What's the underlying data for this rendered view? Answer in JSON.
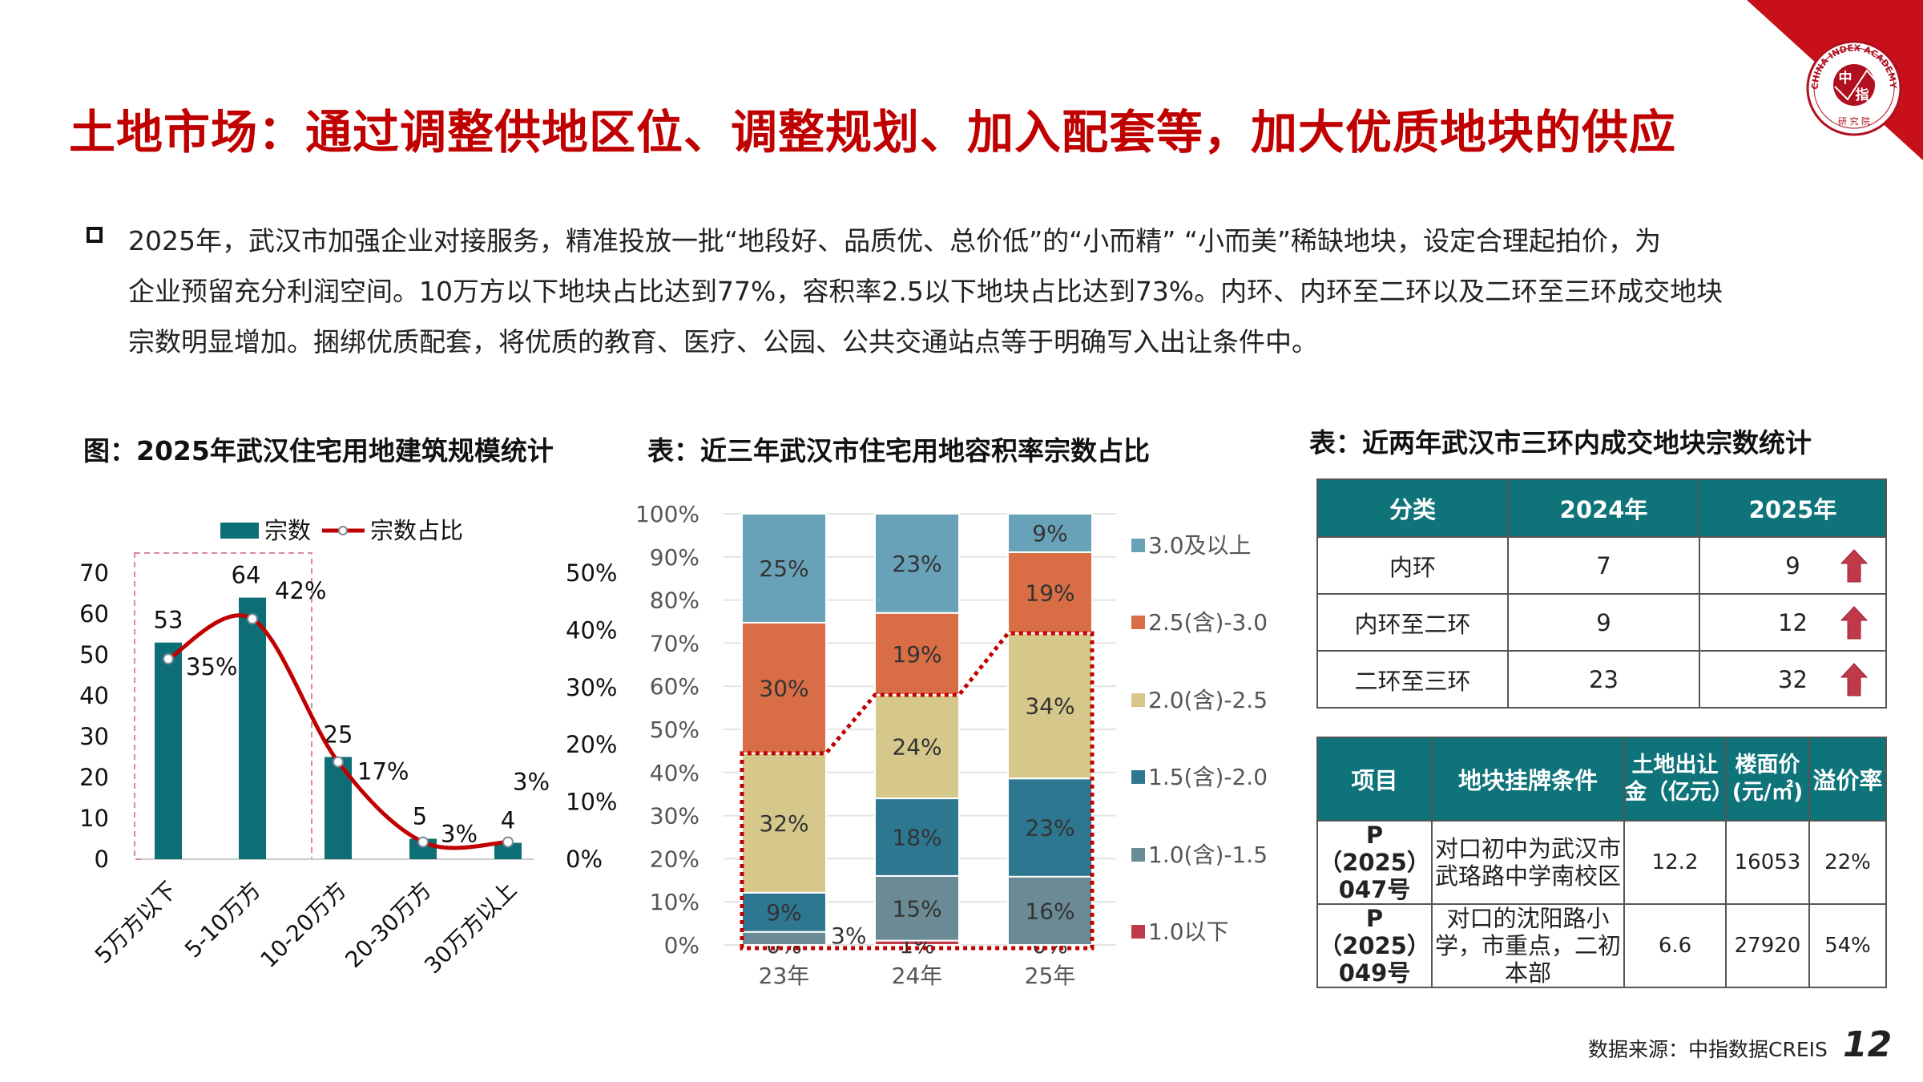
{
  "title": "土地市场：通过调整供地区位、调整规划、加入配套等，加大优质地块的供应",
  "logo": {
    "text_en": "CHINA INDEX ACADEMY",
    "text_cn_top": "中",
    "text_cn_bottom": "指",
    "text_cn_sub": "研究院",
    "color": "#c00000"
  },
  "bullet_lines": [
    "2025年，武汉市加强企业对接服务，精准投放一批“地段好、品质优、总价低”的“小而精” “小而美”稀缺地块，设定合理起拍价，为",
    "企业预留充分利润空间。10万方以下地块占比达到77%，容积率2.5以下地块占比达到73%。内环、内环至二环以及二环至三环成交地块",
    "宗数明显增加。捆绑优质配套，将优质的教育、医疗、公园、公共交通站点等于明确写入出让条件中。"
  ],
  "chart_data": [
    {
      "type": "bar",
      "title": "图：2025年武汉住宅用地建筑规模统计",
      "categories": [
        "5万方以下",
        "5-10万方",
        "10-20万方",
        "20-30万方",
        "30万方以上"
      ],
      "series": [
        {
          "name": "宗数",
          "type": "bar",
          "values": [
            53,
            64,
            25,
            5,
            4
          ],
          "color": "#0e6e76",
          "labels": [
            "53",
            "64",
            "25",
            "5",
            "4"
          ]
        },
        {
          "name": "宗数占比",
          "type": "line",
          "axis": "right",
          "values": [
            35,
            42,
            17,
            3,
            3
          ],
          "color": "#c00000",
          "labels": [
            "35%",
            "42%",
            "17%",
            "3%",
            "3%"
          ]
        }
      ],
      "ylim": [
        0,
        70
      ],
      "yticks": [
        "0",
        "10",
        "20",
        "30",
        "40",
        "50",
        "60",
        "70"
      ],
      "y2lim": [
        0,
        50
      ],
      "y2ticks": [
        "0%",
        "10%",
        "20%",
        "30%",
        "40%",
        "50%"
      ],
      "legend": "top",
      "highlight": "5万方以下 至 5-10万方"
    },
    {
      "type": "bar",
      "stacked": true,
      "title": "表：近三年武汉市住宅用地容积率宗数占比",
      "categories": [
        "23年",
        "24年",
        "25年"
      ],
      "series": [
        {
          "name": "1.0以下",
          "values": [
            0,
            1,
            0
          ],
          "color": "#c0394b"
        },
        {
          "name": "1.0(含)-1.5",
          "values": [
            3,
            15,
            16
          ],
          "color": "#6a8b95"
        },
        {
          "name": "1.5(含)-2.0",
          "values": [
            9,
            18,
            23
          ],
          "color": "#2e7790"
        },
        {
          "name": "2.0(含)-2.5",
          "values": [
            32,
            24,
            34
          ],
          "color": "#d6c88a"
        },
        {
          "name": "2.5(含)-3.0",
          "values": [
            30,
            19,
            19
          ],
          "color": "#d86d46"
        },
        {
          "name": "3.0及以上",
          "values": [
            25,
            23,
            9
          ],
          "color": "#68a2b8"
        }
      ],
      "ylim": [
        0,
        100
      ],
      "yticks": [
        "0%",
        "10%",
        "20%",
        "30%",
        "40%",
        "50%",
        "60%",
        "70%",
        "80%",
        "90%",
        "100%"
      ],
      "legend": "right",
      "highlight": "2.5以下"
    }
  ],
  "table1": {
    "title": "表：近两年武汉市三环内成交地块宗数统计",
    "headers": [
      "分类",
      "2024年",
      "2025年"
    ],
    "rows": [
      {
        "cat": "内环",
        "y2024": "7",
        "y2025": "9",
        "trend": "up"
      },
      {
        "cat": "内环至二环",
        "y2024": "9",
        "y2025": "12",
        "trend": "up"
      },
      {
        "cat": "二环至三环",
        "y2024": "23",
        "y2025": "32",
        "trend": "up"
      }
    ]
  },
  "table2": {
    "headers": [
      "项目",
      "地块挂牌条件",
      "土地出让金（亿元）",
      "楼面价(元/㎡)",
      "溢价率"
    ],
    "rows": [
      {
        "id": "P（2025）047号",
        "cond": "对口初中为武汉市武珞路中学南校区",
        "price": "12.2",
        "floor": "16053",
        "premium": "22%"
      },
      {
        "id": "P（2025）049号",
        "cond": "对口的沈阳路小学，市重点，二初本部",
        "price": "6.6",
        "floor": "27920",
        "premium": "54%"
      }
    ]
  },
  "footer": {
    "source": "数据来源：中指数据CREIS",
    "page": "12"
  },
  "colors": {
    "accent": "#c00000",
    "teal": "#0e7479"
  }
}
